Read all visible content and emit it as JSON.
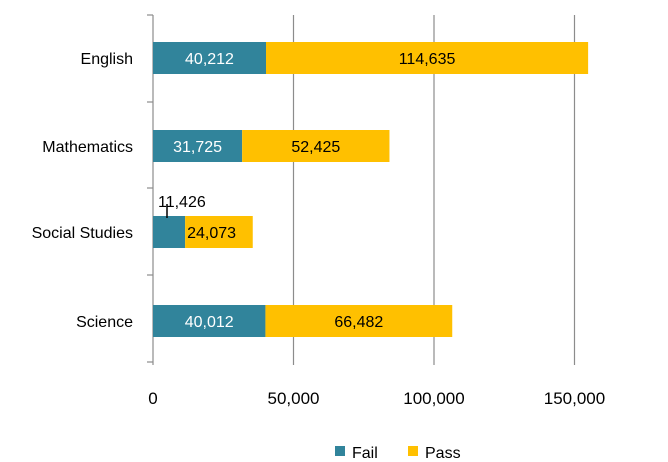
{
  "chart_data": {
    "type": "bar",
    "orientation": "horizontal",
    "stacked": true,
    "categories": [
      "English",
      "Mathematics",
      "Social Studies",
      "Science"
    ],
    "series": [
      {
        "name": "Fail",
        "values": [
          40212,
          31725,
          11426,
          40012
        ],
        "labels": [
          "40,212",
          "31,725",
          "11,426",
          "40,012"
        ],
        "color": "#31849B"
      },
      {
        "name": "Pass",
        "values": [
          114635,
          52425,
          24073,
          66482
        ],
        "labels": [
          "114,635",
          "52,425",
          "24,073",
          "66,482"
        ],
        "color": "#FFC000"
      }
    ],
    "xlim": [
      0,
      180000
    ],
    "xticks": [
      0,
      50000,
      100000,
      150000
    ],
    "xtick_labels": [
      "0",
      "50,000",
      "100,000",
      "150,000"
    ],
    "grid": true,
    "legend": "bottom"
  }
}
